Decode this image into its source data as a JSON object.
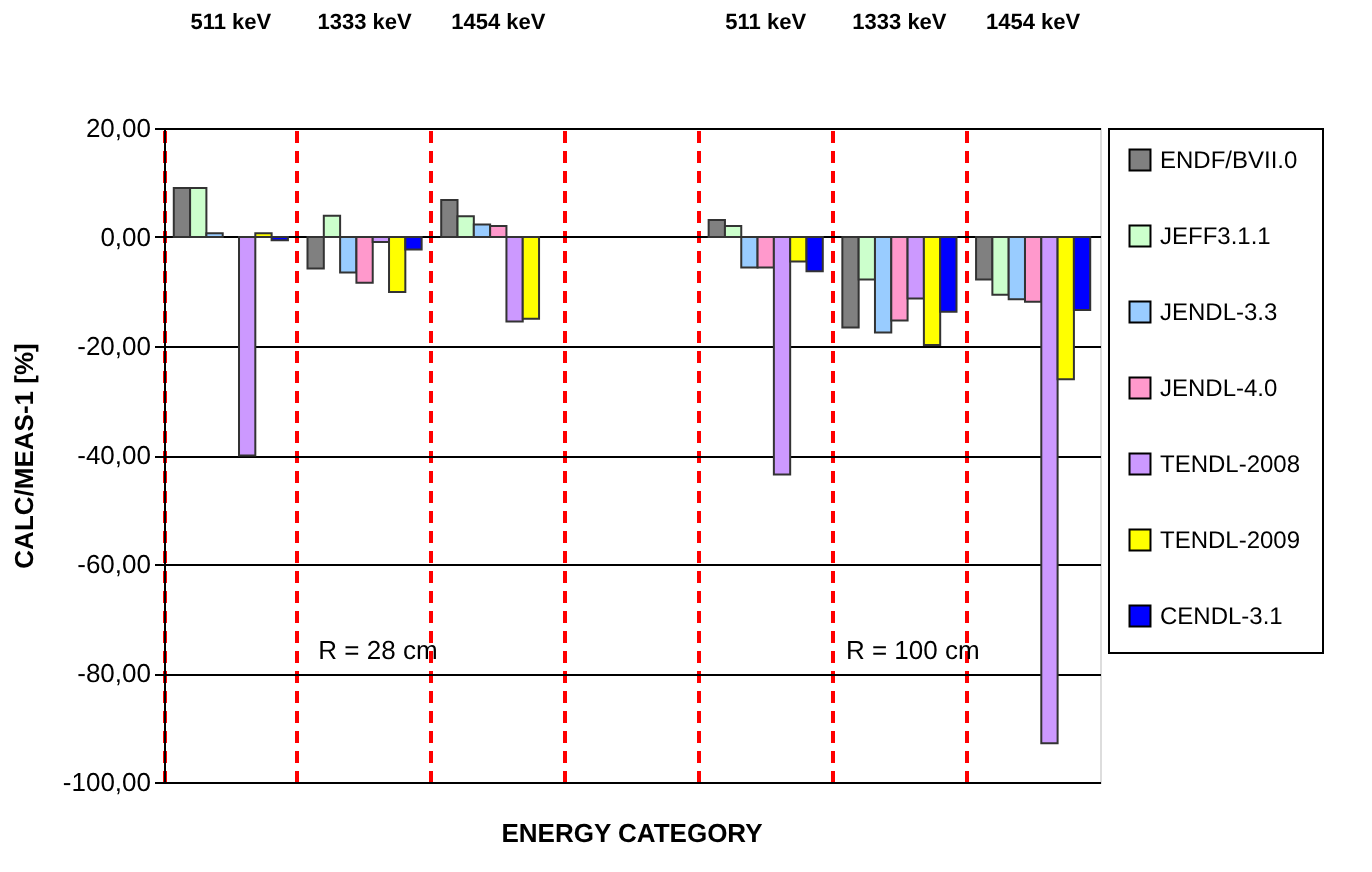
{
  "chart_data": {
    "type": "bar",
    "xlabel": "ENERGY CATEGORY",
    "ylabel": "CALC/MEAS-1  [%]",
    "categories": [
      "511 keV",
      "1333 keV",
      "1454 keV",
      null,
      "511 keV",
      "1333 keV",
      "1454 keV"
    ],
    "series": [
      {
        "name": "ENDF/BVII.0",
        "color": "#808080",
        "values": [
          9.0,
          -5.8,
          6.8,
          null,
          3.1,
          -16.6,
          -7.8
        ]
      },
      {
        "name": "JEFF3.1.1",
        "color": "#ccffcc",
        "values": [
          9.0,
          3.9,
          3.8,
          null,
          2.0,
          -7.8,
          -10.6
        ]
      },
      {
        "name": "JENDL-3.3",
        "color": "#99ccff",
        "values": [
          0.7,
          -6.5,
          2.3,
          null,
          -5.6,
          -17.5,
          -11.4
        ]
      },
      {
        "name": "JENDL-4.0",
        "color": "#ff99cc",
        "values": [
          null,
          -8.4,
          2.0,
          null,
          -5.6,
          -15.3,
          -11.9
        ]
      },
      {
        "name": "TENDL-2008",
        "color": "#cc99ff",
        "values": [
          -40.1,
          -0.9,
          -15.5,
          null,
          -43.6,
          -11.3,
          -92.9
        ]
      },
      {
        "name": "TENDL-2009",
        "color": "#ffff00",
        "values": [
          0.7,
          -10.1,
          -15.0,
          null,
          -4.5,
          -19.8,
          -26.1
        ]
      },
      {
        "name": "CENDL-3.1",
        "color": "#0000ff",
        "values": [
          -0.6,
          -2.3,
          null,
          null,
          -6.3,
          -13.7,
          -13.4
        ]
      }
    ],
    "ylim": [
      -100,
      20
    ],
    "yticks": [
      {
        "value": -100,
        "label": "-100,00"
      },
      {
        "value": -80,
        "label": "-80,00"
      },
      {
        "value": -60,
        "label": "-60,00"
      },
      {
        "value": -40,
        "label": "-40,00"
      },
      {
        "value": -20,
        "label": "-20,00"
      },
      {
        "value": 0,
        "label": "0,00"
      },
      {
        "value": 20,
        "label": "20,00"
      }
    ],
    "annotations": [
      "R = 28 cm",
      "R = 100 cm"
    ],
    "grid": true,
    "legend": "right"
  }
}
